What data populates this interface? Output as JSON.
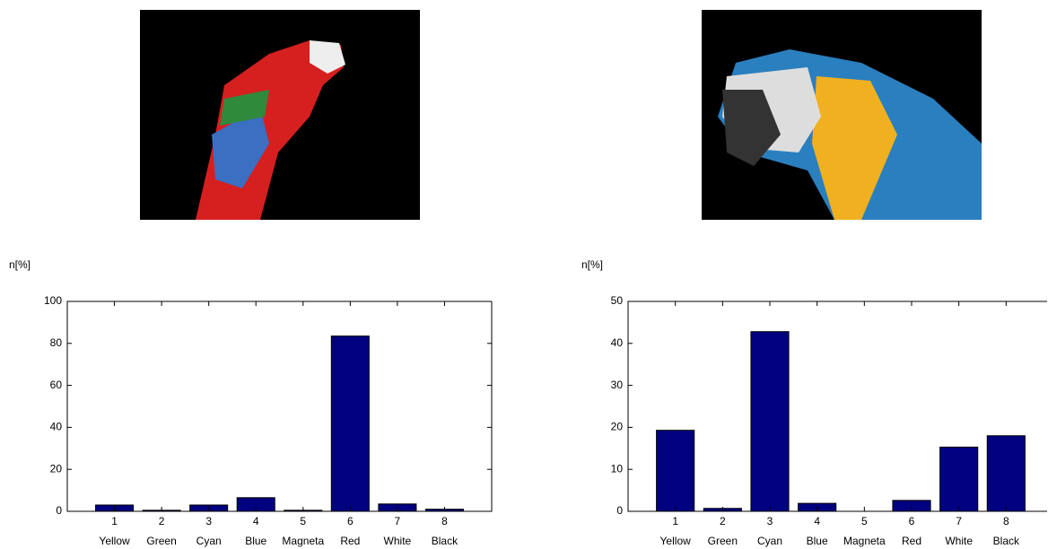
{
  "chart_data": [
    {
      "type": "bar",
      "ylabel": "n[%]",
      "categories": [
        "1",
        "2",
        "3",
        "4",
        "5",
        "6",
        "7",
        "8"
      ],
      "category_labels": [
        "Yellow",
        "Green",
        "Cyan",
        "Blue",
        "Magneta",
        "Red",
        "White",
        "Black"
      ],
      "values": [
        3,
        0.5,
        3,
        6.5,
        0.5,
        83.5,
        3.5,
        1
      ],
      "color": "#000080",
      "ylim": [
        0,
        100
      ],
      "yticks": [
        0,
        20,
        40,
        60,
        80,
        100
      ]
    },
    {
      "type": "bar",
      "ylabel": "n[%]",
      "categories": [
        "1",
        "2",
        "3",
        "4",
        "5",
        "6",
        "7",
        "8"
      ],
      "category_labels": [
        "Yellow",
        "Green",
        "Cyan",
        "Blue",
        "Magneta",
        "Red",
        "White",
        "Black"
      ],
      "values": [
        19.3,
        0.7,
        42.8,
        1.9,
        0,
        2.6,
        15.3,
        18
      ],
      "color": "#000080",
      "ylim": [
        0,
        50
      ],
      "yticks": [
        0,
        10,
        20,
        30,
        40,
        50
      ]
    }
  ]
}
